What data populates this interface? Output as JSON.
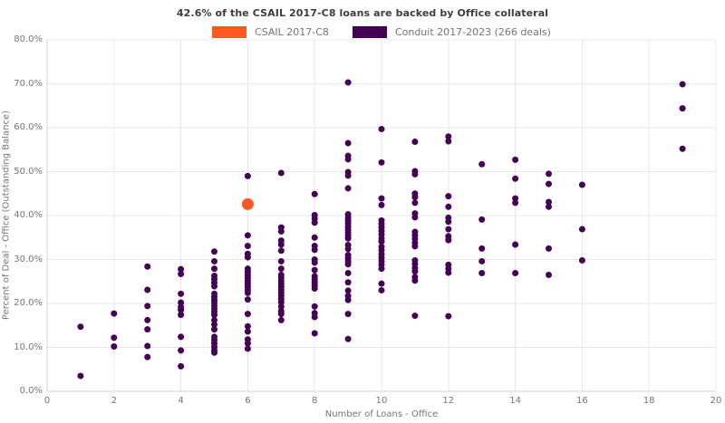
{
  "title": "42.6% of the CSAIL 2017-C8 loans are backed by Office collateral",
  "legend": [
    {
      "label": "CSAIL 2017-C8",
      "color": "#ff5722"
    },
    {
      "label": "Conduit 2017-2023 (266 deals)",
      "color": "#440154"
    }
  ],
  "colors": {
    "csail_orange": "#ff5722",
    "conduit_purple": "#440154",
    "gridline": "#e7e7e7",
    "axis_line": "#d3d3d3",
    "tick_text": "#757575",
    "title_text": "#3d3d3d"
  },
  "chart_data": {
    "type": "scatter",
    "title": "42.6% of the CSAIL 2017-C8 loans are backed by Office collateral",
    "xlabel": "Number of Loans - Office",
    "ylabel": "Percent of Deal - Office (Outstanding Balance)",
    "xlim": [
      0,
      20
    ],
    "ylim": [
      0,
      80
    ],
    "grid": true,
    "legend_position": "top-center",
    "x_ticks": [
      0,
      2,
      4,
      6,
      8,
      10,
      12,
      14,
      16,
      18,
      20
    ],
    "x_tick_labels": [
      "0",
      "2",
      "4",
      "6",
      "8",
      "10",
      "12",
      "14",
      "16",
      "18",
      "20"
    ],
    "y_ticks": [
      0,
      10,
      20,
      30,
      40,
      50,
      60,
      70,
      80
    ],
    "y_tick_labels": [
      "0.0%",
      "10.0%",
      "20.0%",
      "30.0%",
      "40.0%",
      "50.0%",
      "60.0%",
      "70.0%",
      "80.0%"
    ],
    "series": [
      {
        "name": "Conduit 2017-2023 (266 deals)",
        "color": "#440154",
        "marker_size": 7,
        "points": [
          [
            1,
            14.7
          ],
          [
            1,
            3.5
          ],
          [
            2,
            17.7
          ],
          [
            2,
            12.2
          ],
          [
            2,
            10.2
          ],
          [
            3,
            28.4
          ],
          [
            3,
            23.1
          ],
          [
            3,
            19.4
          ],
          [
            3,
            16.2
          ],
          [
            3,
            14.1
          ],
          [
            3,
            10.3
          ],
          [
            3,
            7.8
          ],
          [
            4,
            27.8
          ],
          [
            4,
            26.7
          ],
          [
            4,
            22.2
          ],
          [
            4,
            20.2
          ],
          [
            4,
            19.2
          ],
          [
            4,
            18.5
          ],
          [
            4,
            17.4
          ],
          [
            4,
            12.4
          ],
          [
            4,
            9.3
          ],
          [
            4,
            5.7
          ],
          [
            5,
            31.8
          ],
          [
            5,
            29.6
          ],
          [
            5,
            27.9
          ],
          [
            5,
            26.3
          ],
          [
            5,
            25.5
          ],
          [
            5,
            24.7
          ],
          [
            5,
            23.9
          ],
          [
            5,
            22.2
          ],
          [
            5,
            21.5
          ],
          [
            5,
            20.8
          ],
          [
            5,
            20.2
          ],
          [
            5,
            19.5
          ],
          [
            5,
            18.8
          ],
          [
            5,
            18.1
          ],
          [
            5,
            17.4
          ],
          [
            5,
            16.2
          ],
          [
            5,
            15.2
          ],
          [
            5,
            14.1
          ],
          [
            5,
            12.4
          ],
          [
            5,
            11.7
          ],
          [
            5,
            10.9
          ],
          [
            5,
            10.1
          ],
          [
            5,
            9.3
          ],
          [
            5,
            8.8
          ],
          [
            6,
            49.0
          ],
          [
            6,
            35.5
          ],
          [
            6,
            33.1
          ],
          [
            6,
            31.3
          ],
          [
            6,
            30.5
          ],
          [
            6,
            27.9
          ],
          [
            6,
            27.2
          ],
          [
            6,
            26.5
          ],
          [
            6,
            25.8
          ],
          [
            6,
            25.1
          ],
          [
            6,
            24.5
          ],
          [
            6,
            23.8
          ],
          [
            6,
            23.1
          ],
          [
            6,
            22.4
          ],
          [
            6,
            20.9
          ],
          [
            6,
            17.6
          ],
          [
            6,
            14.8
          ],
          [
            6,
            13.6
          ],
          [
            6,
            11.8
          ],
          [
            6,
            10.9
          ],
          [
            6,
            9.7
          ],
          [
            7,
            49.7
          ],
          [
            7,
            37.3
          ],
          [
            7,
            36.4
          ],
          [
            7,
            34.3
          ],
          [
            7,
            33.4
          ],
          [
            7,
            32.0
          ],
          [
            7,
            29.6
          ],
          [
            7,
            27.9
          ],
          [
            7,
            26.5
          ],
          [
            7,
            25.8
          ],
          [
            7,
            25.1
          ],
          [
            7,
            24.5
          ],
          [
            7,
            23.8
          ],
          [
            7,
            23.1
          ],
          [
            7,
            22.4
          ],
          [
            7,
            21.7
          ],
          [
            7,
            21.0
          ],
          [
            7,
            20.3
          ],
          [
            7,
            19.3
          ],
          [
            7,
            18.3
          ],
          [
            7,
            17.6
          ],
          [
            7,
            16.2
          ],
          [
            8,
            44.9
          ],
          [
            8,
            40.1
          ],
          [
            8,
            39.3
          ],
          [
            8,
            38.4
          ],
          [
            8,
            35.0
          ],
          [
            8,
            33.1
          ],
          [
            8,
            32.2
          ],
          [
            8,
            30.0
          ],
          [
            8,
            29.3
          ],
          [
            8,
            27.6
          ],
          [
            8,
            26.2
          ],
          [
            8,
            25.5
          ],
          [
            8,
            24.8
          ],
          [
            8,
            24.1
          ],
          [
            8,
            23.4
          ],
          [
            8,
            19.3
          ],
          [
            8,
            17.8
          ],
          [
            8,
            16.9
          ],
          [
            8,
            13.2
          ],
          [
            9,
            70.3
          ],
          [
            9,
            56.5
          ],
          [
            9,
            53.6
          ],
          [
            9,
            52.8
          ],
          [
            9,
            49.9
          ],
          [
            9,
            49.1
          ],
          [
            9,
            46.2
          ],
          [
            9,
            40.3
          ],
          [
            9,
            39.6
          ],
          [
            9,
            38.9
          ],
          [
            9,
            38.2
          ],
          [
            9,
            37.5
          ],
          [
            9,
            36.8
          ],
          [
            9,
            36.1
          ],
          [
            9,
            35.4
          ],
          [
            9,
            34.8
          ],
          [
            9,
            33.3
          ],
          [
            9,
            32.4
          ],
          [
            9,
            31.0
          ],
          [
            9,
            30.3
          ],
          [
            9,
            29.6
          ],
          [
            9,
            28.9
          ],
          [
            9,
            26.9
          ],
          [
            9,
            24.8
          ],
          [
            9,
            22.9
          ],
          [
            9,
            21.7
          ],
          [
            9,
            20.8
          ],
          [
            9,
            17.6
          ],
          [
            9,
            11.9
          ],
          [
            10,
            59.7
          ],
          [
            10,
            52.1
          ],
          [
            10,
            43.9
          ],
          [
            10,
            42.4
          ],
          [
            10,
            38.9
          ],
          [
            10,
            38.1
          ],
          [
            10,
            37.3
          ],
          [
            10,
            36.5
          ],
          [
            10,
            35.7
          ],
          [
            10,
            34.8
          ],
          [
            10,
            34.1
          ],
          [
            10,
            32.9
          ],
          [
            10,
            32.1
          ],
          [
            10,
            31.2
          ],
          [
            10,
            30.4
          ],
          [
            10,
            29.6
          ],
          [
            10,
            28.8
          ],
          [
            10,
            27.9
          ],
          [
            10,
            24.5
          ],
          [
            10,
            23.0
          ],
          [
            11,
            56.8
          ],
          [
            11,
            50.1
          ],
          [
            11,
            49.4
          ],
          [
            11,
            45.0
          ],
          [
            11,
            44.2
          ],
          [
            11,
            42.9
          ],
          [
            11,
            40.5
          ],
          [
            11,
            39.6
          ],
          [
            11,
            36.3
          ],
          [
            11,
            35.5
          ],
          [
            11,
            34.7
          ],
          [
            11,
            33.8
          ],
          [
            11,
            33.0
          ],
          [
            11,
            29.8
          ],
          [
            11,
            29.0
          ],
          [
            11,
            28.1
          ],
          [
            11,
            27.3
          ],
          [
            11,
            26.0
          ],
          [
            11,
            25.2
          ],
          [
            11,
            17.2
          ],
          [
            12,
            58.0
          ],
          [
            12,
            56.9
          ],
          [
            12,
            44.4
          ],
          [
            12,
            42.0
          ],
          [
            12,
            39.5
          ],
          [
            12,
            38.6
          ],
          [
            12,
            36.9
          ],
          [
            12,
            35.3
          ],
          [
            12,
            34.4
          ],
          [
            12,
            28.8
          ],
          [
            12,
            27.9
          ],
          [
            12,
            27.0
          ],
          [
            12,
            17.1
          ],
          [
            13,
            51.7
          ],
          [
            13,
            39.1
          ],
          [
            13,
            32.5
          ],
          [
            13,
            29.6
          ],
          [
            13,
            26.9
          ],
          [
            14,
            52.7
          ],
          [
            14,
            48.4
          ],
          [
            14,
            43.9
          ],
          [
            14,
            42.9
          ],
          [
            14,
            33.4
          ],
          [
            14,
            26.9
          ],
          [
            15,
            49.5
          ],
          [
            15,
            47.2
          ],
          [
            15,
            43.1
          ],
          [
            15,
            42.0
          ],
          [
            15,
            32.5
          ],
          [
            15,
            26.5
          ],
          [
            16,
            47.0
          ],
          [
            16,
            36.9
          ],
          [
            16,
            29.8
          ],
          [
            19,
            69.9
          ],
          [
            19,
            64.4
          ],
          [
            19,
            55.2
          ]
        ]
      },
      {
        "name": "CSAIL 2017-C8",
        "color": "#ff5722",
        "marker_size": 13,
        "points": [
          [
            6,
            42.6
          ]
        ]
      }
    ]
  }
}
